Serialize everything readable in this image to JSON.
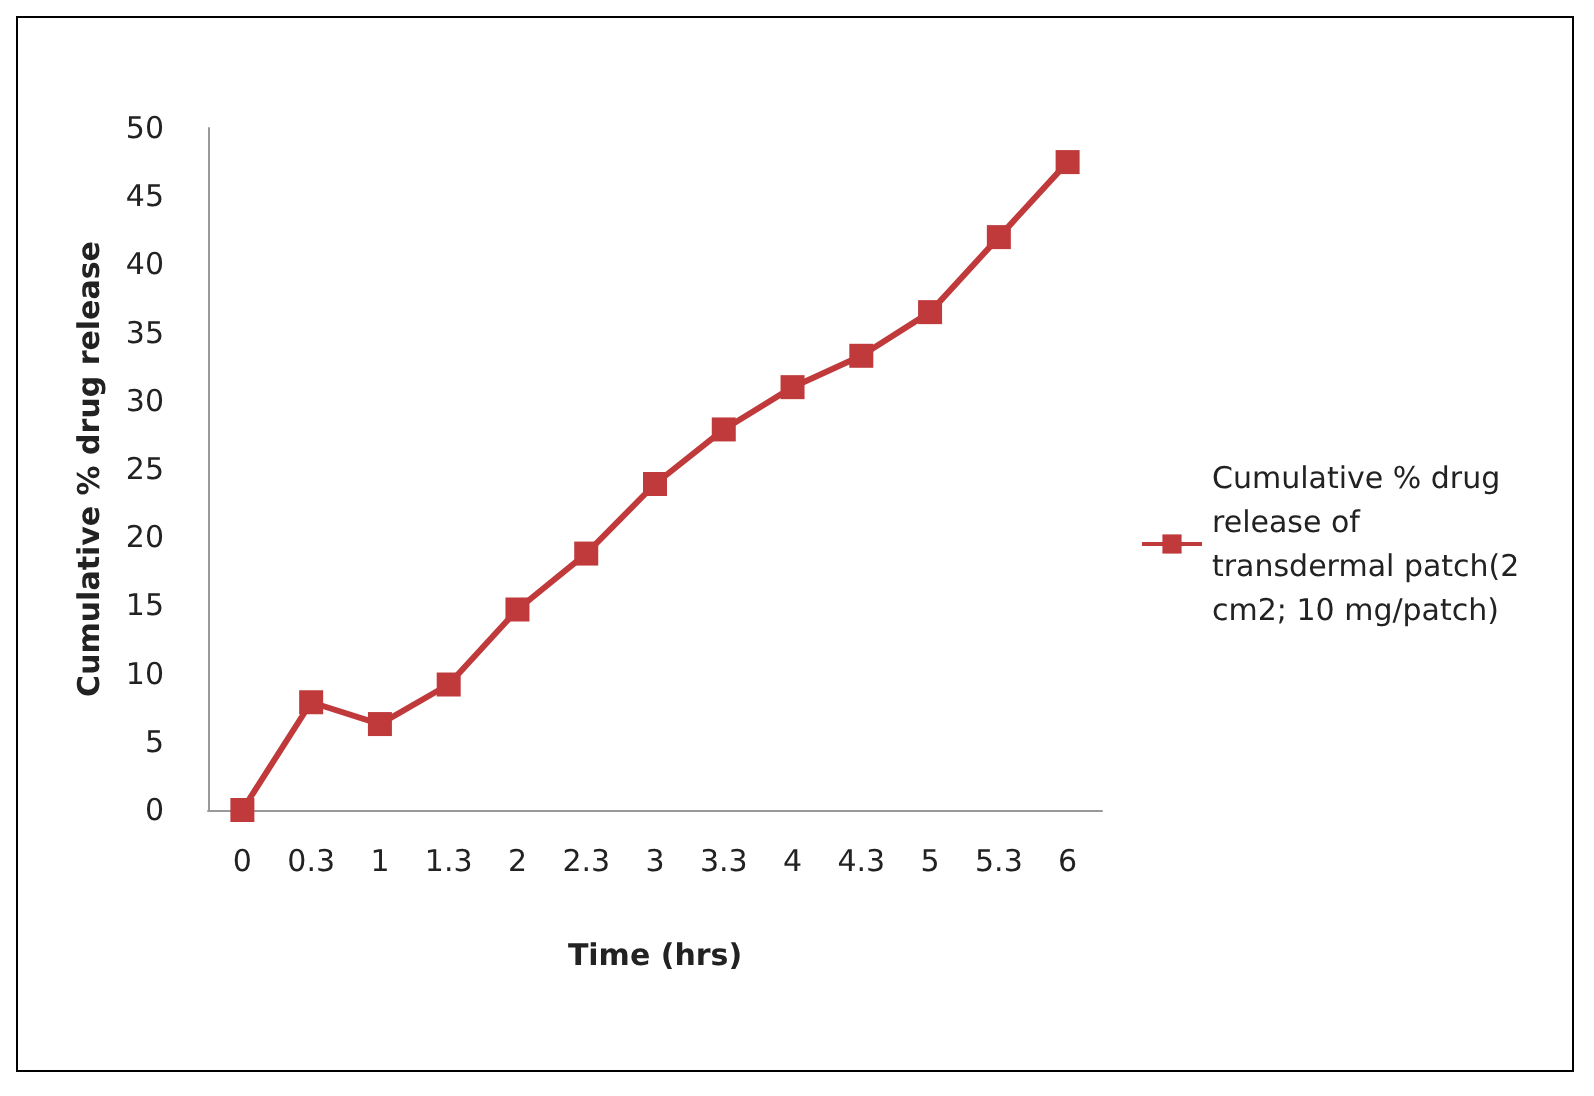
{
  "chart_data": {
    "type": "line",
    "xlabel": "Time (hrs)",
    "ylabel": "Cumulative % drug release",
    "categories": [
      "0",
      "0.3",
      "1",
      "1.3",
      "2",
      "2.3",
      "3",
      "3.3",
      "4",
      "4.3",
      "5",
      "5.3",
      "6"
    ],
    "series": [
      {
        "name": "Cumulative % drug release of transdermal patch(2 cm2; 10 mg/patch)",
        "color": "#c0393b",
        "values": [
          0,
          7.9,
          6.3,
          9.2,
          14.7,
          18.8,
          23.9,
          27.9,
          31.0,
          33.3,
          36.5,
          42.0,
          47.5
        ]
      }
    ],
    "ylim": [
      0,
      50
    ],
    "yticks": [
      0,
      5,
      10,
      15,
      20,
      25,
      30,
      35,
      40,
      45,
      50
    ],
    "grid": false,
    "legend": "right",
    "marker": "square",
    "line_style": "solid"
  }
}
